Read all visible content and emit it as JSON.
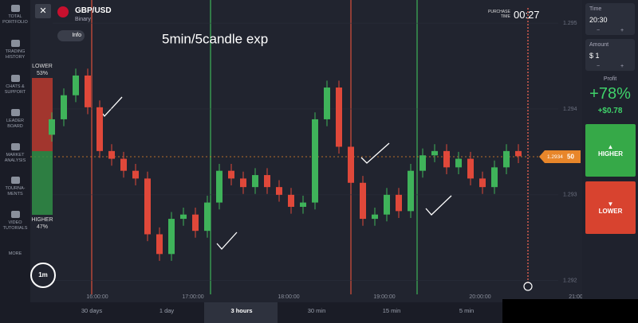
{
  "sidebar": {
    "items": [
      [
        "TOTAL",
        "PORTFOLIO"
      ],
      [
        "TRADING",
        "HISTORY"
      ],
      [
        "CHATS &",
        "SUPPORT"
      ],
      [
        "LEADER",
        "BOARD"
      ],
      [
        "MARKET",
        "ANALYSIS"
      ],
      [
        "TOURNA-",
        "MENTS"
      ],
      [
        "VIDEO",
        "TUTORIALS"
      ],
      [
        "MORE"
      ]
    ],
    "timeframe": "1m"
  },
  "header": {
    "pair": "GBP/USD",
    "mode": "Binary",
    "info": "Info",
    "purchase_label": [
      "PURCHASE",
      "TIME"
    ],
    "countdown": "00:27"
  },
  "sentiment": {
    "lower_label": "LOWER",
    "lower_pct": "53%",
    "higher_label": "HIGHER",
    "higher_pct": "47%"
  },
  "annotation": "5min/5candle exp",
  "chart_data": {
    "type": "candlestick",
    "open": [
      1.2937,
      1.29388,
      1.29416,
      1.29439,
      1.29402,
      1.29351,
      1.29342,
      1.29328,
      1.29319,
      1.29254,
      1.29231,
      1.29272,
      1.29277,
      1.29258,
      1.29291,
      1.29328,
      1.29319,
      1.29309,
      1.29323,
      1.29309,
      1.293,
      1.29286,
      1.29291,
      1.29388,
      1.29425,
      1.29356,
      1.29314,
      1.29272,
      1.29277,
      1.293,
      1.29281,
      1.29328,
      1.29346,
      1.29351,
      1.29332,
      1.29342,
      1.29319,
      1.29309,
      1.29332,
      1.29351
    ],
    "high": [
      1.29396,
      1.29424,
      1.29447,
      1.29447,
      1.2941,
      1.29359,
      1.2935,
      1.29336,
      1.29327,
      1.29262,
      1.2928,
      1.29285,
      1.29285,
      1.29299,
      1.29336,
      1.29336,
      1.29327,
      1.29331,
      1.29331,
      1.29317,
      1.29308,
      1.29299,
      1.29396,
      1.29433,
      1.29433,
      1.29364,
      1.29322,
      1.29285,
      1.29308,
      1.29308,
      1.29336,
      1.29354,
      1.29359,
      1.29359,
      1.2935,
      1.2935,
      1.29327,
      1.2934,
      1.29359,
      1.29359
    ],
    "low": [
      1.29362,
      1.2938,
      1.29408,
      1.29394,
      1.29343,
      1.29334,
      1.2932,
      1.29311,
      1.29246,
      1.29223,
      1.29223,
      1.29264,
      1.2925,
      1.2925,
      1.29283,
      1.29311,
      1.29301,
      1.29301,
      1.29301,
      1.29292,
      1.29278,
      1.29278,
      1.29283,
      1.2938,
      1.29348,
      1.29306,
      1.29264,
      1.29264,
      1.29269,
      1.29273,
      1.29273,
      1.2932,
      1.29338,
      1.29324,
      1.29324,
      1.29311,
      1.29301,
      1.29301,
      1.29324,
      1.29337
    ],
    "close": [
      1.29388,
      1.29416,
      1.29439,
      1.29402,
      1.29351,
      1.29342,
      1.29328,
      1.29319,
      1.29254,
      1.29231,
      1.29272,
      1.29277,
      1.29258,
      1.29291,
      1.29328,
      1.29319,
      1.29309,
      1.29323,
      1.29309,
      1.293,
      1.29286,
      1.29291,
      1.29388,
      1.29425,
      1.29356,
      1.29314,
      1.29272,
      1.29277,
      1.293,
      1.29281,
      1.29328,
      1.29346,
      1.29351,
      1.29332,
      1.29342,
      1.29319,
      1.29309,
      1.29332,
      1.29351,
      1.29345
    ],
    "up_color": "#3fb35a",
    "down_color": "#e0483a",
    "ylim": [
      1.29184,
      1.29527
    ],
    "yticks": [
      1.292,
      1.293,
      1.294,
      1.295
    ],
    "x_labels": [
      "16:00:00",
      "17:00:00",
      "18:00:00",
      "19:00:00",
      "20:00:00",
      "21:00"
    ],
    "current_price": [
      "1.2934",
      "50"
    ]
  },
  "panel": {
    "time_label": "Time",
    "time": "20:30",
    "amount_label": "Amount",
    "amount": "$ 1",
    "minus": "−",
    "plus": "+",
    "profit_label": "Profit",
    "profit_pct": "+78%",
    "profit_value": "+$0.78",
    "higher": "HIGHER",
    "lower": "LOWER"
  },
  "periods": [
    "30 days",
    "1 day",
    "3 hours",
    "30 min",
    "15 min",
    "5 min"
  ]
}
